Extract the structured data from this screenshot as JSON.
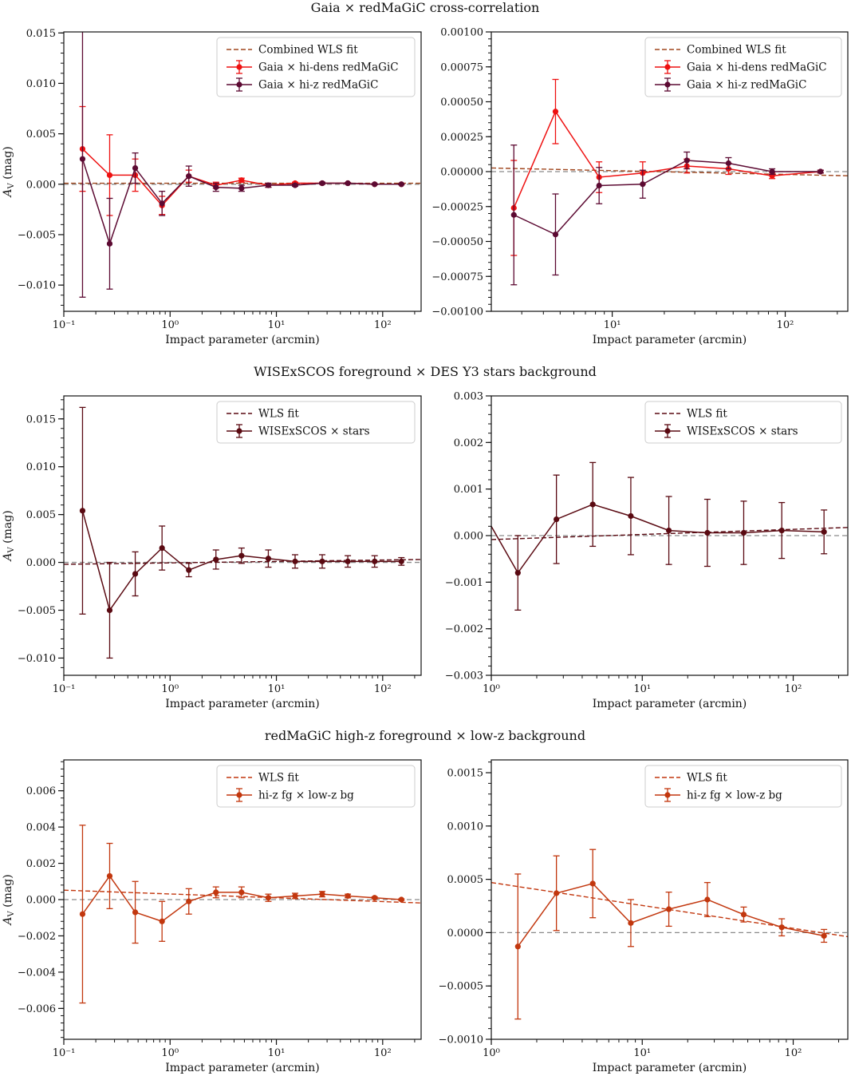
{
  "figure": {
    "row_titles": [
      "Gaia × redMaGiC cross-correlation",
      "WISExSCOS foreground × DES Y3 stars background",
      "redMaGiC high-z foreground × low-z background"
    ]
  },
  "colors": {
    "hi_dens": "#ee1111",
    "hi_z": "#5c0a32",
    "wise": "#5a0a12",
    "hz_fg": "#c2370e",
    "fit_gaia": "#a0461e",
    "fit_wise": "#5a0a12",
    "fit_hz": "#c2370e",
    "zero": "#8a8a8a"
  },
  "chart_data": [
    {
      "id": "p1",
      "type": "line",
      "xscale": "log",
      "xlim": [
        0.1,
        230
      ],
      "ylim": [
        -0.0126,
        0.0151
      ],
      "xlabel": "Impact parameter (arcmin)",
      "ylabel": "A_V (mag)",
      "xticks": [
        {
          "v": 0.1,
          "label": "10⁻¹"
        },
        {
          "v": 1,
          "label": "10⁰"
        },
        {
          "v": 10,
          "label": "10¹"
        },
        {
          "v": 100,
          "label": "10²"
        }
      ],
      "yticks": [
        {
          "v": -0.01,
          "label": "−0.010"
        },
        {
          "v": -0.005,
          "label": "−0.005"
        },
        {
          "v": 0,
          "label": "0.000"
        },
        {
          "v": 0.005,
          "label": "0.005"
        },
        {
          "v": 0.01,
          "label": "0.010"
        },
        {
          "v": 0.015,
          "label": "0.015"
        }
      ],
      "zero_line": true,
      "fit": {
        "name": "Combined WLS fit",
        "color_key": "fit_gaia",
        "a": 0.0001,
        "b": 0
      },
      "series": [
        {
          "name": "Gaia × hi-dens redMaGiC",
          "color_key": "hi_dens",
          "capsize": 6,
          "x": [
            0.15,
            0.27,
            0.47,
            0.84,
            1.5,
            2.7,
            4.7,
            8.4,
            15,
            27,
            47,
            84,
            150
          ],
          "y": [
            0.0035,
            0.0009,
            0.0009,
            -0.0021,
            0.0008,
            -0.0001,
            0.0004,
            -0.0001,
            0.0001,
            0.0001,
            0.0001,
            0.0,
            0.0
          ],
          "err": [
            0.0042,
            0.004,
            0.0016,
            0.0009,
            0.0006,
            0.0003,
            0.0002,
            0.0002,
            0.0001,
            0.0001,
            5e-05,
            5e-05,
            5e-05
          ]
        },
        {
          "name": "Gaia × hi-z redMaGiC",
          "color_key": "hi_z",
          "capsize": 6,
          "x": [
            0.15,
            0.27,
            0.47,
            0.84,
            1.5,
            2.7,
            4.7,
            8.4,
            15,
            27,
            47,
            84,
            150
          ],
          "y": [
            0.0025,
            -0.0059,
            0.0016,
            -0.0019,
            0.0008,
            -0.0003,
            -0.0004,
            -0.0001,
            -0.0001,
            0.0001,
            0.0001,
            0.0,
            0.0
          ],
          "err": [
            0.0137,
            0.0045,
            0.0015,
            0.0012,
            0.001,
            0.0004,
            0.0003,
            0.0002,
            0.0001,
            0.0001,
            5e-05,
            5e-05,
            5e-05
          ]
        }
      ]
    },
    {
      "id": "p2",
      "type": "line",
      "xscale": "log",
      "xlim": [
        2.0,
        230
      ],
      "ylim": [
        -0.001,
        0.001
      ],
      "xlabel": "Impact parameter (arcmin)",
      "ylabel": "",
      "xticks": [
        {
          "v": 10,
          "label": "10¹"
        },
        {
          "v": 100,
          "label": "10²"
        }
      ],
      "yticks": [
        {
          "v": -0.001,
          "label": "−0.00100"
        },
        {
          "v": -0.00075,
          "label": "−0.00075"
        },
        {
          "v": -0.0005,
          "label": "−0.00050"
        },
        {
          "v": -0.00025,
          "label": "−0.00025"
        },
        {
          "v": 0,
          "label": "0.00000"
        },
        {
          "v": 0.00025,
          "label": "0.00025"
        },
        {
          "v": 0.0005,
          "label": "0.00050"
        },
        {
          "v": 0.00075,
          "label": "0.00075"
        },
        {
          "v": 0.001,
          "label": "0.00100"
        }
      ],
      "zero_line": true,
      "fit": {
        "name": "Combined WLS fit",
        "color_key": "fit_gaia",
        "a": 3.4e-05,
        "b": -2.7e-05
      },
      "series": [
        {
          "name": "Gaia × hi-dens redMaGiC",
          "color_key": "hi_dens",
          "capsize": 6,
          "x": [
            2.7,
            4.7,
            8.4,
            15,
            27,
            47,
            84,
            160
          ],
          "y": [
            -0.00026,
            0.00043,
            -4e-05,
            -1e-05,
            4e-05,
            2e-05,
            -3e-05,
            0.0
          ],
          "err": [
            0.00034,
            0.00023,
            0.00011,
            8e-05,
            5e-05,
            4e-05,
            2e-05,
            1e-05
          ]
        },
        {
          "name": "Gaia × hi-z redMaGiC",
          "color_key": "hi_z",
          "capsize": 6,
          "x": [
            2.7,
            4.7,
            8.4,
            15,
            27,
            47,
            84,
            160
          ],
          "y": [
            -0.00031,
            -0.00045,
            -0.0001,
            -9e-05,
            8e-05,
            6e-05,
            0.0,
            0.0
          ],
          "err": [
            0.0005,
            0.00029,
            0.00013,
            0.0001,
            6e-05,
            4e-05,
            2e-05,
            1e-05
          ]
        }
      ]
    },
    {
      "id": "p3",
      "type": "line",
      "xscale": "log",
      "xlim": [
        0.1,
        230
      ],
      "ylim": [
        -0.0118,
        0.0174
      ],
      "xlabel": "Impact parameter (arcmin)",
      "ylabel": "A_V (mag)",
      "xticks": [
        {
          "v": 0.1,
          "label": "10⁻¹"
        },
        {
          "v": 1,
          "label": "10⁰"
        },
        {
          "v": 10,
          "label": "10¹"
        },
        {
          "v": 100,
          "label": "10²"
        }
      ],
      "yticks": [
        {
          "v": -0.01,
          "label": "−0.010"
        },
        {
          "v": -0.005,
          "label": "−0.005"
        },
        {
          "v": 0,
          "label": "0.000"
        },
        {
          "v": 0.005,
          "label": "0.005"
        },
        {
          "v": 0.01,
          "label": "0.010"
        },
        {
          "v": 0.015,
          "label": "0.015"
        }
      ],
      "zero_line": true,
      "fit": {
        "name": "WLS fit",
        "color_key": "fit_wise",
        "a": -5e-05,
        "b": 0.00015
      },
      "series": [
        {
          "name": "WISExSCOS × stars",
          "color_key": "wise",
          "capsize": 6,
          "x": [
            0.15,
            0.27,
            0.47,
            0.84,
            1.5,
            2.7,
            4.7,
            8.4,
            15,
            27,
            47,
            84,
            150
          ],
          "y": [
            0.0054,
            -0.005,
            -0.0012,
            0.0015,
            -0.0008,
            0.0003,
            0.0007,
            0.0004,
            0.0001,
            0.0001,
            0.0001,
            0.0001,
            0.0001
          ],
          "err": [
            0.0108,
            0.005,
            0.0023,
            0.0023,
            0.0007,
            0.001,
            0.0008,
            0.0009,
            0.0007,
            0.0007,
            0.0006,
            0.0006,
            0.0004
          ]
        }
      ]
    },
    {
      "id": "p4",
      "type": "line",
      "xscale": "log",
      "xlim": [
        1.0,
        230
      ],
      "ylim": [
        -0.003,
        0.003
      ],
      "xlabel": "Impact parameter (arcmin)",
      "ylabel": "",
      "xticks": [
        {
          "v": 1,
          "label": "10⁰"
        },
        {
          "v": 10,
          "label": "10¹"
        },
        {
          "v": 100,
          "label": "10²"
        }
      ],
      "yticks": [
        {
          "v": -0.003,
          "label": "−0.003"
        },
        {
          "v": -0.002,
          "label": "−0.002"
        },
        {
          "v": -0.001,
          "label": "−0.001"
        },
        {
          "v": 0,
          "label": "0.000"
        },
        {
          "v": 0.001,
          "label": "0.001"
        },
        {
          "v": 0.002,
          "label": "0.002"
        },
        {
          "v": 0.003,
          "label": "0.003"
        }
      ],
      "zero_line": true,
      "fit": {
        "name": "WLS fit",
        "color_key": "fit_wise",
        "a": -8.5e-05,
        "b": 0.00011
      },
      "series": [
        {
          "name": "WISExSCOS × stars",
          "color_key": "wise",
          "capsize": 6,
          "lead_in": [
            0.8,
            0.00075
          ],
          "x": [
            1.5,
            2.7,
            4.7,
            8.4,
            15,
            27,
            47,
            84,
            160
          ],
          "y": [
            -0.0008,
            0.00035,
            0.00067,
            0.00042,
            0.00011,
            6e-05,
            6e-05,
            0.00011,
            8e-05
          ],
          "err": [
            0.0008,
            0.00095,
            0.0009,
            0.00083,
            0.00073,
            0.00072,
            0.00068,
            0.0006,
            0.00047
          ]
        }
      ]
    },
    {
      "id": "p5",
      "type": "line",
      "xscale": "log",
      "xlim": [
        0.1,
        230
      ],
      "ylim": [
        -0.0077,
        0.0077
      ],
      "xlabel": "Impact parameter (arcmin)",
      "ylabel": "A_V (mag)",
      "xticks": [
        {
          "v": 0.1,
          "label": "10⁻¹"
        },
        {
          "v": 1,
          "label": "10⁰"
        },
        {
          "v": 10,
          "label": "10¹"
        },
        {
          "v": 100,
          "label": "10²"
        }
      ],
      "yticks": [
        {
          "v": -0.006,
          "label": "−0.006"
        },
        {
          "v": -0.004,
          "label": "−0.004"
        },
        {
          "v": -0.002,
          "label": "−0.002"
        },
        {
          "v": 0,
          "label": "0.000"
        },
        {
          "v": 0.002,
          "label": "0.002"
        },
        {
          "v": 0.004,
          "label": "0.004"
        },
        {
          "v": 0.006,
          "label": "0.006"
        }
      ],
      "zero_line": true,
      "fit": {
        "name": "WLS fit",
        "color_key": "fit_hz",
        "a": 0.00031,
        "b": -0.00021
      },
      "series": [
        {
          "name": "hi-z fg × low-z bg",
          "color_key": "hz_fg",
          "capsize": 6,
          "x": [
            0.15,
            0.27,
            0.47,
            0.84,
            1.5,
            2.7,
            4.7,
            8.4,
            15,
            27,
            47,
            84,
            150
          ],
          "y": [
            -0.0008,
            0.0013,
            -0.0007,
            -0.0012,
            -0.0001,
            0.0004,
            0.0004,
            0.0001,
            0.0002,
            0.0003,
            0.0002,
            0.0001,
            0.0
          ],
          "err": [
            0.0049,
            0.0018,
            0.0017,
            0.0011,
            0.0007,
            0.0003,
            0.0003,
            0.0002,
            0.00015,
            0.00015,
            0.0001,
            5e-05,
            4e-05
          ]
        }
      ]
    },
    {
      "id": "p6",
      "type": "line",
      "xscale": "log",
      "xlim": [
        1.0,
        230
      ],
      "ylim": [
        -0.001,
        0.00162
      ],
      "xlabel": "Impact parameter (arcmin)",
      "ylabel": "",
      "xticks": [
        {
          "v": 1,
          "label": "10⁰"
        },
        {
          "v": 10,
          "label": "10¹"
        },
        {
          "v": 100,
          "label": "10²"
        }
      ],
      "yticks": [
        {
          "v": -0.001,
          "label": "−0.0010"
        },
        {
          "v": -0.0005,
          "label": "−0.0005"
        },
        {
          "v": 0,
          "label": "0.0000"
        },
        {
          "v": 0.0005,
          "label": "0.0005"
        },
        {
          "v": 0.001,
          "label": "0.0010"
        },
        {
          "v": 0.0015,
          "label": "0.0015"
        }
      ],
      "zero_line": true,
      "fit": {
        "name": "WLS fit",
        "color_key": "fit_hz",
        "a": 0.00047,
        "b": -0.000215
      },
      "series": [
        {
          "name": "hi-z fg × low-z bg",
          "color_key": "hz_fg",
          "capsize": 6,
          "x": [
            1.5,
            2.7,
            4.7,
            8.4,
            15,
            27,
            47,
            84,
            160
          ],
          "y": [
            -0.00013,
            0.00037,
            0.00046,
            9e-05,
            0.00022,
            0.00031,
            0.00017,
            5e-05,
            -3e-05
          ],
          "err": [
            0.00068,
            0.00035,
            0.00032,
            0.00022,
            0.00016,
            0.00016,
            7e-05,
            8e-05,
            6e-05
          ]
        }
      ]
    }
  ]
}
